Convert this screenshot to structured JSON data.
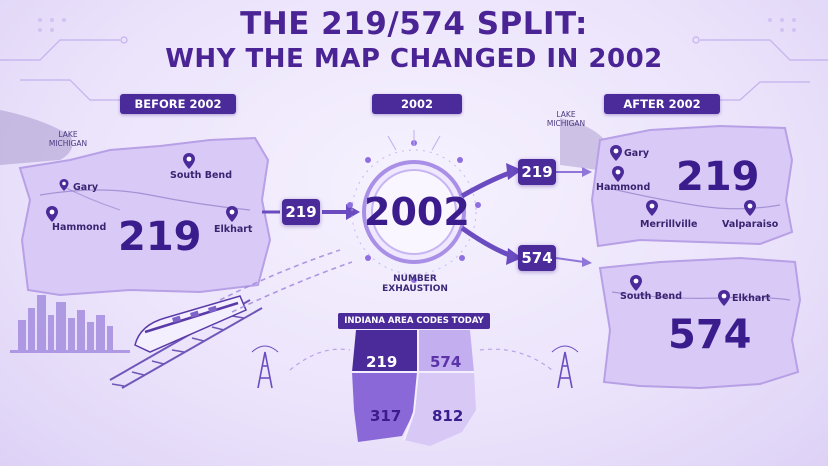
{
  "title": {
    "line1": "THE 219/574 SPLIT:",
    "line2": "WHY THE MAP CHANGED IN 2002"
  },
  "headers": {
    "before": "BEFORE 2002",
    "middle": "2002",
    "after": "AFTER 2002"
  },
  "before_map": {
    "lake": "LAKE MICHIGAN",
    "cities": [
      "Gary",
      "South Bend",
      "Hammond",
      "Elkhart"
    ],
    "code": "219"
  },
  "center": {
    "year": "2002",
    "caption": "NUMBER EXHAUSTION",
    "input_code": "219",
    "output_top": "219",
    "output_bottom": "574"
  },
  "after_top_map": {
    "lake": "LAKE MICHIGAN",
    "cities": [
      "Gary",
      "Hammond",
      "Merrillville",
      "Valparaiso"
    ],
    "code": "219"
  },
  "after_bottom_map": {
    "cities": [
      "South Bend",
      "Elkhart"
    ],
    "code": "574"
  },
  "indiana": {
    "header": "INDIANA AREA CODES TODAY",
    "codes": [
      "219",
      "574",
      "317",
      "812"
    ]
  },
  "colors": {
    "dark_purple": "#4b2a9a",
    "map_fill": "#d9c9f6",
    "map_stroke": "#b7a0e6",
    "accent": "#8f6fe0"
  },
  "icons": [
    "map-pin-icon",
    "train-icon",
    "city-skyline-icon",
    "radio-tower-icon",
    "arrow-icon"
  ]
}
